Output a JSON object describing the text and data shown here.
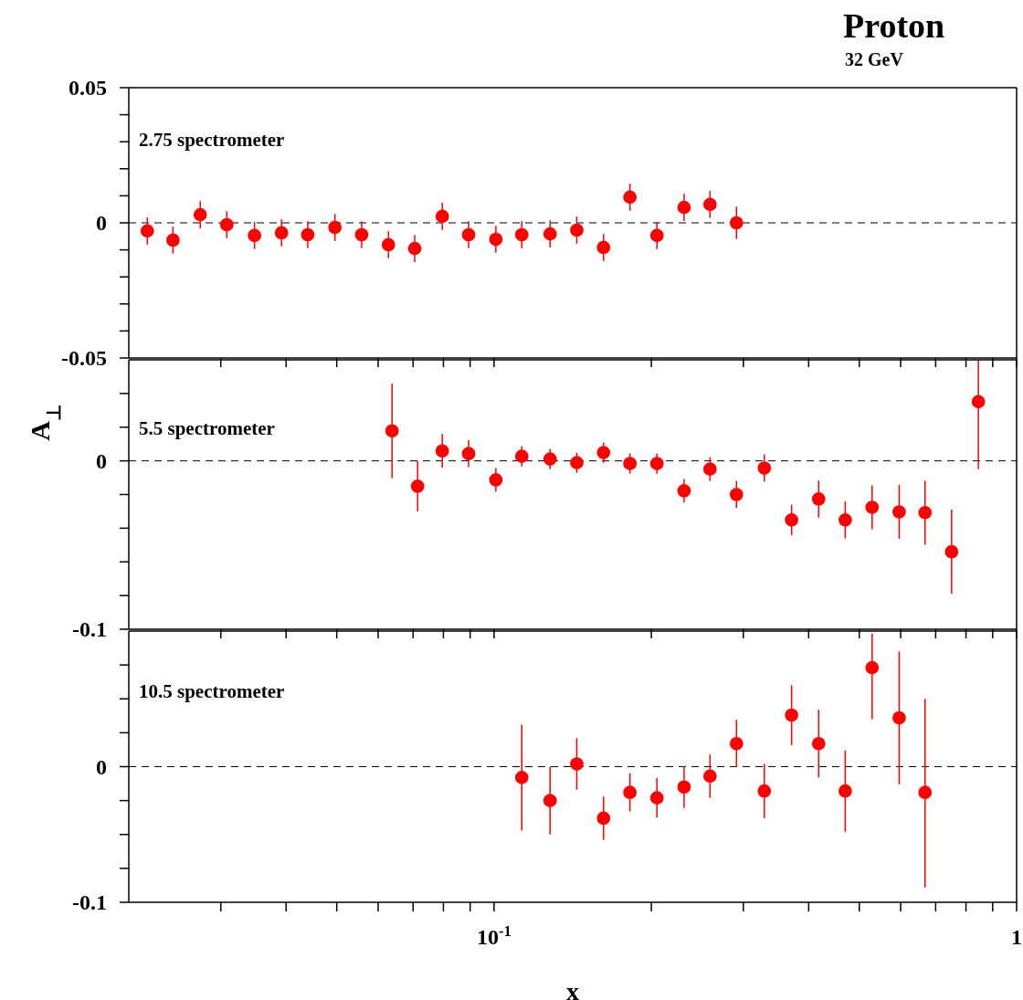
{
  "chart_data": [
    {
      "type": "scatter",
      "log": "x",
      "title": "Proton",
      "subtitle": "32 GeV",
      "annotations": [
        "2.75 spectrometer"
      ],
      "color": "#ff0000",
      "marker": "circle",
      "tick_labels": "y",
      "ref_lines": [
        {
          "axis": "y",
          "value": 0,
          "line_style": "dashed",
          "color": "#000000"
        }
      ],
      "x": [
        0.0217,
        0.0243,
        0.0274,
        0.0308,
        0.0348,
        0.0392,
        0.044,
        0.0496,
        0.0558,
        0.0628,
        0.0705,
        0.0796,
        0.0894,
        0.1008,
        0.113,
        0.128,
        0.144,
        0.162,
        0.182,
        0.205,
        0.231,
        0.259,
        0.291
      ],
      "values": [
        -0.003,
        -0.0064,
        0.003,
        -0.0007,
        -0.0047,
        -0.0037,
        -0.0044,
        -0.0017,
        -0.0044,
        -0.0081,
        -0.0095,
        0.0024,
        -0.0044,
        -0.0061,
        -0.0044,
        -0.0041,
        -0.0027,
        -0.0091,
        0.0095,
        -0.0047,
        0.0057,
        0.0068,
        0
      ],
      "errors": [
        0.005,
        0.005,
        0.005,
        0.005,
        0.005,
        0.005,
        0.005,
        0.005,
        0.005,
        0.005,
        0.005,
        0.005,
        0.005,
        0.005,
        0.005,
        0.005,
        0.005,
        0.005,
        0.005,
        0.005,
        0.005,
        0.005,
        0.006
      ],
      "xlim": [
        0.02,
        1
      ],
      "xticks": [
        {
          "value": 0.03,
          "label": null
        },
        {
          "value": 0.04,
          "label": null
        },
        {
          "value": 0.05,
          "label": null
        },
        {
          "value": 0.06,
          "label": null
        },
        {
          "value": 0.07,
          "label": null
        },
        {
          "value": 0.08,
          "label": null
        },
        {
          "value": 0.09,
          "label": null
        },
        {
          "value": 0.1,
          "label": null
        },
        {
          "value": 0.2,
          "label": null
        },
        {
          "value": 0.3,
          "label": null
        },
        {
          "value": 0.4,
          "label": null
        },
        {
          "value": 0.5,
          "label": null
        },
        {
          "value": 0.6,
          "label": null
        },
        {
          "value": 0.7,
          "label": null
        },
        {
          "value": 0.8,
          "label": null
        },
        {
          "value": 0.9,
          "label": null
        },
        {
          "value": 1,
          "label": null
        }
      ],
      "ylim": [
        -0.05,
        0.05
      ],
      "yticks": [
        -0.05,
        {
          "value": -0.04,
          "label": null
        },
        {
          "value": -0.03,
          "label": null
        },
        {
          "value": -0.02,
          "label": null
        },
        {
          "value": -0.01,
          "label": null
        },
        0,
        {
          "value": 0.01,
          "label": null
        },
        {
          "value": 0.02,
          "label": null
        },
        {
          "value": 0.03,
          "label": null
        },
        {
          "value": 0.04,
          "label": null
        },
        0.05
      ]
    },
    {
      "type": "scatter",
      "log": "x",
      "ylabel": "A$_{⊥}$",
      "annotations": [
        "5.5 spectrometer"
      ],
      "color": "#ff0000",
      "marker": "circle",
      "tick_labels": "y",
      "ref_lines": [
        {
          "axis": "y",
          "value": 0,
          "line_style": "dashed",
          "color": "#000000"
        }
      ],
      "x": [
        0.0638,
        0.0714,
        0.0796,
        0.0894,
        0.1008,
        0.113,
        0.128,
        0.144,
        0.162,
        0.182,
        0.205,
        0.231,
        0.259,
        0.291,
        0.329,
        0.371,
        0.418,
        0.47,
        0.529,
        0.596,
        0.668,
        0.751,
        0.845
      ],
      "values": [
        0.0178,
        -0.0151,
        0.0059,
        0.0043,
        -0.0113,
        0.0027,
        0.0011,
        -0.0011,
        0.0049,
        -0.0016,
        -0.0016,
        -0.0178,
        -0.0049,
        -0.02,
        -0.0043,
        -0.0351,
        -0.0227,
        -0.0351,
        -0.0276,
        -0.0303,
        -0.0308,
        -0.054,
        0.0351
      ],
      "errors": [
        0.028,
        0.015,
        0.01,
        0.008,
        0.007,
        0.006,
        0.006,
        0.006,
        0.006,
        0.006,
        0.006,
        0.007,
        0.007,
        0.008,
        0.008,
        0.009,
        0.011,
        0.011,
        0.013,
        0.016,
        0.019,
        0.025,
        [
          -0.005,
          0.06
        ]
      ],
      "xlim": [
        0.02,
        1
      ],
      "xticks": [
        {
          "value": 0.03,
          "label": null
        },
        {
          "value": 0.04,
          "label": null
        },
        {
          "value": 0.05,
          "label": null
        },
        {
          "value": 0.06,
          "label": null
        },
        {
          "value": 0.07,
          "label": null
        },
        {
          "value": 0.08,
          "label": null
        },
        {
          "value": 0.09,
          "label": null
        },
        {
          "value": 0.1,
          "label": null
        },
        {
          "value": 0.2,
          "label": null
        },
        {
          "value": 0.3,
          "label": null
        },
        {
          "value": 0.4,
          "label": null
        },
        {
          "value": 0.5,
          "label": null
        },
        {
          "value": 0.6,
          "label": null
        },
        {
          "value": 0.7,
          "label": null
        },
        {
          "value": 0.8,
          "label": null
        },
        {
          "value": 0.9,
          "label": null
        },
        {
          "value": 1,
          "label": null
        }
      ],
      "ylim": [
        -0.1,
        0.06
      ],
      "yticks": [
        -0.1,
        {
          "value": -0.08,
          "label": null
        },
        {
          "value": -0.06,
          "label": null
        },
        {
          "value": -0.04,
          "label": null
        },
        {
          "value": -0.02,
          "label": null
        },
        0,
        {
          "value": 0.02,
          "label": null
        },
        {
          "value": 0.04,
          "label": null
        }
      ]
    },
    {
      "type": "scatter",
      "log": "x",
      "xlabel": "x",
      "annotations": [
        "10.5 spectrometer"
      ],
      "color": "#ff0000",
      "marker": "circle",
      "ref_lines": [
        {
          "axis": "y",
          "value": 0,
          "line_style": "dashed",
          "color": "#000000"
        }
      ],
      "x": [
        0.113,
        0.128,
        0.144,
        0.162,
        0.182,
        0.205,
        0.231,
        0.259,
        0.291,
        0.329,
        0.371,
        0.418,
        0.47,
        0.529,
        0.596,
        0.668
      ],
      "values": [
        -0.008,
        -0.025,
        0.002,
        -0.038,
        -0.019,
        -0.023,
        -0.015,
        -0.007,
        0.017,
        -0.018,
        0.038,
        0.017,
        -0.018,
        0.073,
        0.036,
        -0.019
      ],
      "errors": [
        0.039,
        0.025,
        0.019,
        0.016,
        0.014,
        0.0145,
        0.0155,
        0.016,
        0.0175,
        0.02,
        0.022,
        0.025,
        0.03,
        [
          0.035,
          0.098
        ],
        [
          -0.013,
          0.085
        ],
        [
          -0.089,
          0.05
        ]
      ],
      "xlim": [
        0.02,
        1
      ],
      "xticks": [
        {
          "value": 0.03,
          "label": null
        },
        {
          "value": 0.04,
          "label": null
        },
        {
          "value": 0.05,
          "label": null
        },
        {
          "value": 0.06,
          "label": null
        },
        {
          "value": 0.07,
          "label": null
        },
        {
          "value": 0.08,
          "label": null
        },
        {
          "value": 0.09,
          "label": null
        },
        {
          "value": 0.1,
          "label": "10$^{-1}$"
        },
        {
          "value": 0.2,
          "label": null
        },
        {
          "value": 0.3,
          "label": null
        },
        {
          "value": 0.4,
          "label": null
        },
        {
          "value": 0.5,
          "label": null
        },
        {
          "value": 0.6,
          "label": null
        },
        {
          "value": 0.7,
          "label": null
        },
        {
          "value": 0.8,
          "label": null
        },
        {
          "value": 0.9,
          "label": null
        },
        1
      ],
      "ylim": [
        -0.1,
        0.1
      ],
      "yticks": [
        -0.1,
        {
          "value": -0.075,
          "label": null
        },
        {
          "value": -0.05,
          "label": null
        },
        {
          "value": -0.025,
          "label": null
        },
        0,
        {
          "value": 0.025,
          "label": null
        },
        {
          "value": 0.05,
          "label": null
        },
        {
          "value": 0.075,
          "label": null
        }
      ]
    }
  ]
}
